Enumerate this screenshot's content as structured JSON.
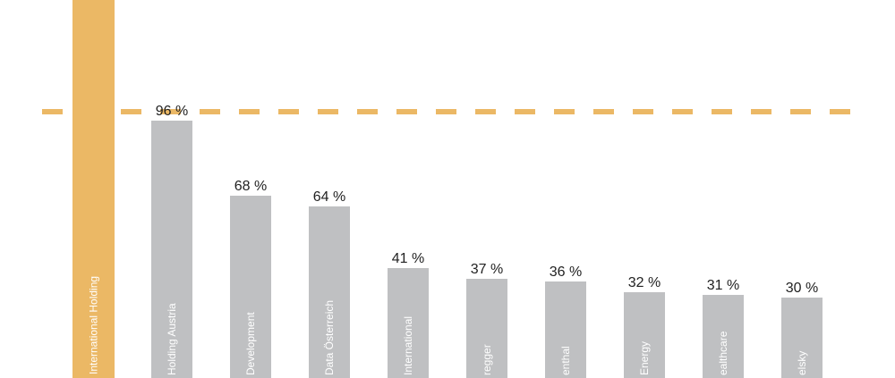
{
  "chart_data": {
    "type": "bar",
    "title": "",
    "xlabel": "",
    "ylabel": "",
    "ylim": [
      0,
      100
    ],
    "reference_line": {
      "value": 100,
      "color": "#EBB865",
      "style": "dashed"
    },
    "highlight": {
      "label": "International Holding",
      "value": 100,
      "color": "#EBB865"
    },
    "categories": [
      "Holding Austria",
      "Development",
      "Data Österreich",
      "International",
      "regger",
      "enthal",
      "Energy",
      "ealthcare",
      "elsky"
    ],
    "values": [
      96,
      68,
      64,
      41,
      37,
      36,
      32,
      31,
      30
    ],
    "value_labels": [
      "96 %",
      "68 %",
      "64 %",
      "41 %",
      "37 %",
      "36 %",
      "32 %",
      "31 %",
      "30 %"
    ],
    "bar_color": "#BFC0C2"
  }
}
